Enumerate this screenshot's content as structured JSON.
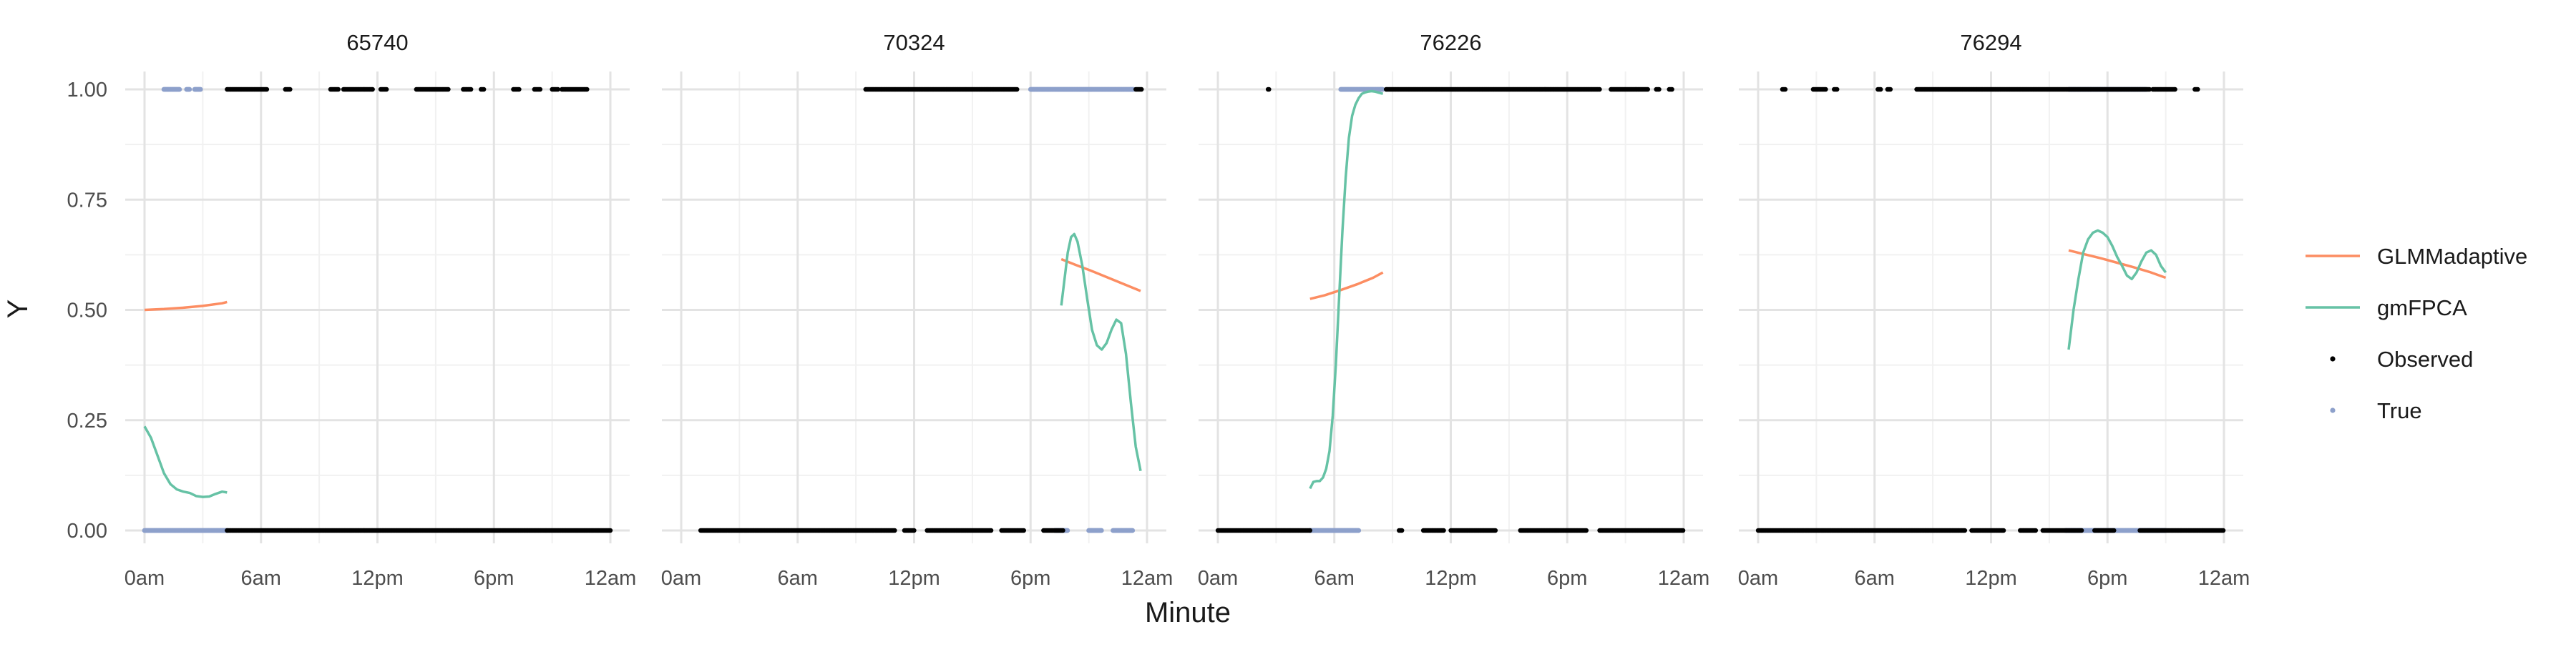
{
  "chart_data": {
    "type": "scatter",
    "facets": [
      "65740",
      "70324",
      "76226",
      "76294"
    ],
    "xlabel": "Minute",
    "ylabel": "Y",
    "x_range_minutes": [
      0,
      1440
    ],
    "x_ticks": [
      {
        "label": "0am",
        "minute": 0
      },
      {
        "label": "6am",
        "minute": 360
      },
      {
        "label": "12pm",
        "minute": 720
      },
      {
        "label": "6pm",
        "minute": 1080
      },
      {
        "label": "12am",
        "minute": 1440
      }
    ],
    "y_ticks": [
      "0.00",
      "0.25",
      "0.50",
      "0.75",
      "1.00"
    ],
    "ylim": [
      0,
      1
    ],
    "grid": true,
    "legend_position": "right",
    "legend": [
      {
        "label": "GLMMadaptive",
        "kind": "line",
        "color": "#FC8D62"
      },
      {
        "label": "gmFPCA",
        "kind": "line",
        "color": "#66C2A5"
      },
      {
        "label": "Observed",
        "kind": "point",
        "color": "#000000"
      },
      {
        "label": "True",
        "kind": "point",
        "color": "#8DA0CB"
      }
    ],
    "panels": [
      {
        "id": "65740",
        "observed": {
          "y1": [
            [
              255,
              380
            ],
            [
              435,
              450
            ],
            [
              575,
              600
            ],
            [
              615,
              705
            ],
            [
              730,
              750
            ],
            [
              840,
              940
            ],
            [
              985,
              1010
            ],
            [
              1040,
              1050
            ],
            [
              1140,
              1160
            ],
            [
              1205,
              1225
            ],
            [
              1260,
              1280
            ],
            [
              1290,
              1370
            ]
          ],
          "y0": [
            [
              255,
              1440
            ]
          ]
        },
        "true": {
          "y1": [
            [
              60,
              110
            ],
            [
              130,
              140
            ],
            [
              155,
              175
            ]
          ],
          "y0": [
            [
              0,
              255
            ]
          ]
        },
        "glmm": {
          "x": [
            0,
            60,
            120,
            180,
            240,
            255
          ],
          "y": [
            0.5,
            0.502,
            0.505,
            0.509,
            0.515,
            0.518
          ]
        },
        "gmfpca": {
          "x": [
            0,
            20,
            40,
            60,
            80,
            100,
            120,
            140,
            160,
            180,
            200,
            220,
            240,
            255
          ],
          "y": [
            0.236,
            0.21,
            0.17,
            0.13,
            0.105,
            0.093,
            0.088,
            0.085,
            0.078,
            0.076,
            0.077,
            0.083,
            0.088,
            0.086
          ]
        }
      },
      {
        "id": "70324",
        "observed": {
          "y1": [
            [
              570,
              1040
            ],
            [
              1405,
              1425
            ]
          ],
          "y0": [
            [
              60,
              660
            ],
            [
              690,
              720
            ],
            [
              760,
              960
            ],
            [
              990,
              1060
            ],
            [
              1120,
              1180
            ]
          ]
        },
        "true": {
          "y1": [
            [
              1080,
              1400
            ]
          ],
          "y0": [
            [
              1155,
              1195
            ],
            [
              1260,
              1300
            ],
            [
              1335,
              1395
            ]
          ]
        },
        "glmm": {
          "x": [
            1175,
            1220,
            1270,
            1320,
            1370,
            1420
          ],
          "y": [
            0.615,
            0.602,
            0.588,
            0.573,
            0.558,
            0.543
          ]
        },
        "gmfpca": {
          "x": [
            1175,
            1185,
            1195,
            1205,
            1215,
            1225,
            1240,
            1255,
            1270,
            1285,
            1300,
            1315,
            1330,
            1345,
            1360,
            1375,
            1390,
            1405,
            1420
          ],
          "y": [
            0.51,
            0.57,
            0.63,
            0.665,
            0.672,
            0.655,
            0.6,
            0.525,
            0.455,
            0.42,
            0.41,
            0.425,
            0.455,
            0.478,
            0.47,
            0.4,
            0.29,
            0.19,
            0.135
          ]
        }
      },
      {
        "id": "76226",
        "observed": {
          "y1": [
            [
              155,
              160
            ],
            [
              520,
              1180
            ],
            [
              1215,
              1330
            ],
            [
              1355,
              1365
            ],
            [
              1395,
              1405
            ]
          ],
          "y0": [
            [
              0,
              285
            ],
            [
              560,
              570
            ],
            [
              635,
              700
            ],
            [
              720,
              860
            ],
            [
              935,
              1140
            ],
            [
              1180,
              1440
            ]
          ]
        },
        "true": {
          "y1": [
            [
              380,
              510
            ]
          ],
          "y0": [
            [
              285,
              435
            ]
          ]
        },
        "glmm": {
          "x": [
            285,
            330,
            380,
            430,
            480,
            510
          ],
          "y": [
            0.525,
            0.533,
            0.545,
            0.558,
            0.573,
            0.585
          ]
        },
        "gmfpca": {
          "x": [
            285,
            295,
            305,
            315,
            325,
            335,
            345,
            355,
            365,
            375,
            385,
            395,
            405,
            415,
            425,
            435,
            445,
            455,
            465,
            475,
            485,
            495,
            510
          ],
          "y": [
            0.095,
            0.11,
            0.112,
            0.112,
            0.12,
            0.14,
            0.18,
            0.26,
            0.38,
            0.53,
            0.68,
            0.8,
            0.89,
            0.94,
            0.965,
            0.98,
            0.99,
            0.993,
            0.995,
            0.996,
            0.995,
            0.993,
            0.99
          ]
        }
      },
      {
        "id": "76294",
        "observed": {
          "y1": [
            [
              75,
              85
            ],
            [
              170,
              210
            ],
            [
              235,
              245
            ],
            [
              370,
              380
            ],
            [
              400,
              410
            ],
            [
              490,
              1210
            ],
            [
              1220,
              1290
            ],
            [
              1350,
              1360
            ]
          ],
          "y0": [
            [
              0,
              640
            ],
            [
              660,
              760
            ],
            [
              810,
              860
            ],
            [
              880,
              1000
            ],
            [
              1040,
              1100
            ],
            [
              1180,
              1440
            ]
          ]
        },
        "true": {
          "y1": [
            [
              960,
              1200
            ]
          ],
          "y0": [
            [
              950,
              1260
            ]
          ]
        },
        "glmm": {
          "x": [
            960,
            1010,
            1060,
            1110,
            1160,
            1210,
            1260
          ],
          "y": [
            0.635,
            0.626,
            0.617,
            0.607,
            0.597,
            0.586,
            0.573
          ]
        },
        "gmfpca": {
          "x": [
            960,
            975,
            990,
            1005,
            1020,
            1035,
            1050,
            1065,
            1080,
            1095,
            1110,
            1125,
            1140,
            1155,
            1170,
            1185,
            1200,
            1215,
            1230,
            1245,
            1260
          ],
          "y": [
            0.41,
            0.5,
            0.57,
            0.63,
            0.66,
            0.675,
            0.68,
            0.675,
            0.665,
            0.645,
            0.62,
            0.6,
            0.578,
            0.57,
            0.585,
            0.61,
            0.63,
            0.635,
            0.625,
            0.6,
            0.585
          ]
        }
      }
    ]
  }
}
